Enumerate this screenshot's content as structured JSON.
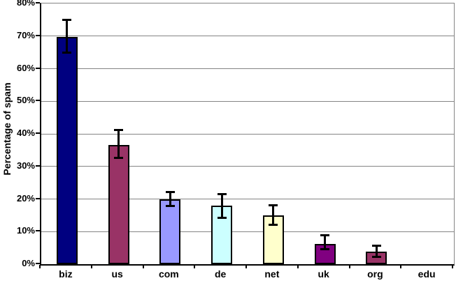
{
  "chart_data": {
    "type": "bar",
    "title": "",
    "xlabel": "",
    "ylabel": "Percentage of spam",
    "categories": [
      "biz",
      "us",
      "com",
      "de",
      "net",
      "uk",
      "org",
      "edu"
    ],
    "values": [
      69.7,
      36.6,
      19.8,
      17.9,
      15.0,
      6.3,
      3.9,
      0
    ],
    "error_up": [
      5.3,
      4.7,
      2.4,
      3.8,
      3.2,
      2.6,
      1.9,
      0
    ],
    "error_down": [
      4.9,
      4.1,
      2.0,
      3.8,
      3.0,
      1.9,
      1.8,
      0
    ],
    "bar_colors": [
      "#000080",
      "#993366",
      "#9999FF",
      "#CCFFFF",
      "#FFFFCC",
      "#800080",
      "#993366",
      "#000080"
    ],
    "ylim": [
      0,
      80
    ],
    "ytick_step": 10,
    "ytick_labels": [
      "0%",
      "10%",
      "20%",
      "30%",
      "40%",
      "50%",
      "60%",
      "70%",
      "80%"
    ],
    "grid": true,
    "legend": "none",
    "gridline_color": "#848484",
    "axis_color": "#000000",
    "error_bar_color": "#000000",
    "background_color": "#FFFFFF"
  }
}
